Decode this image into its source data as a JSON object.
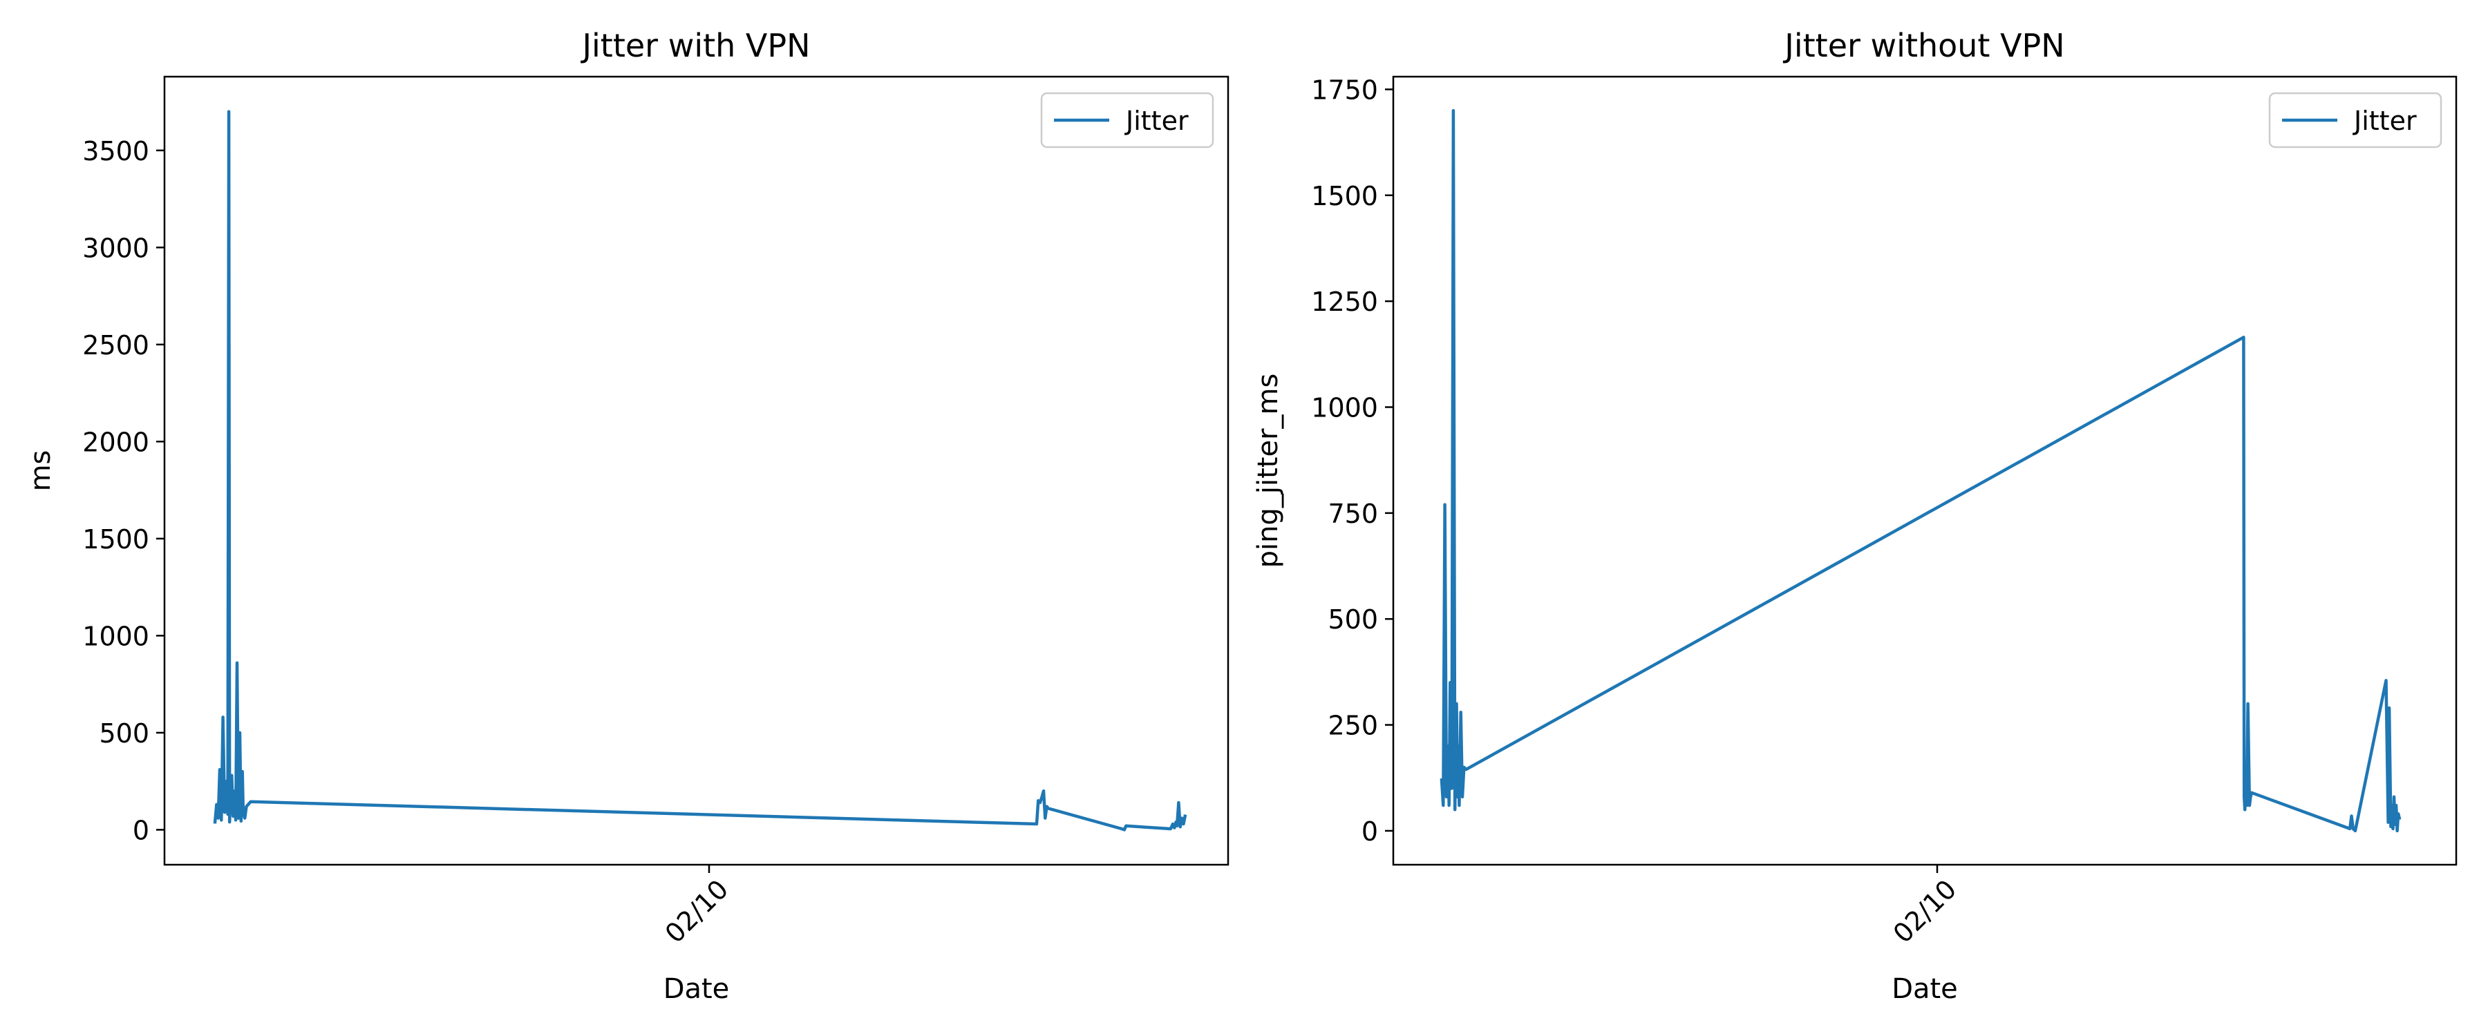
{
  "colors": {
    "series": "#1f77b4",
    "axes": "#000000",
    "background": "#ffffff"
  },
  "chart_data": [
    {
      "type": "line",
      "title": "Jitter with VPN",
      "xlabel": "Date",
      "ylabel": "ms",
      "x_tick_labels": [
        "02/10"
      ],
      "y_ticks": [
        0,
        500,
        1000,
        1500,
        2000,
        2500,
        3000,
        3500
      ],
      "ylim": [
        -180,
        3880
      ],
      "grid": false,
      "legend": {
        "placement": "top-right",
        "entries": [
          "Jitter"
        ]
      },
      "series": [
        {
          "name": "Jitter",
          "x_frac": [
            0.0475,
            0.049,
            0.0505,
            0.052,
            0.0535,
            0.055,
            0.0565,
            0.058,
            0.0595,
            0.0605,
            0.0612,
            0.062,
            0.0632,
            0.0645,
            0.0658,
            0.067,
            0.0682,
            0.0695,
            0.0708,
            0.072,
            0.0732,
            0.074,
            0.0755,
            0.077,
            0.081,
            0.82,
            0.8215,
            0.8232,
            0.825,
            0.8265,
            0.828,
            0.8295,
            0.831,
            0.9,
            0.9025,
            0.904,
            0.946,
            0.948,
            0.9495,
            0.951,
            0.952,
            0.9535,
            0.955,
            0.9565,
            0.958,
            0.9595
          ],
          "values": [
            40,
            130,
            60,
            310,
            50,
            580,
            90,
            250,
            80,
            3700,
            40,
            150,
            280,
            70,
            200,
            50,
            860,
            60,
            500,
            45,
            300,
            90,
            60,
            120,
            145,
            30,
            150,
            140,
            170,
            200,
            60,
            120,
            110,
            5,
            0,
            20,
            5,
            30,
            10,
            40,
            20,
            140,
            15,
            60,
            30,
            70
          ]
        }
      ]
    },
    {
      "type": "line",
      "title": "Jitter without VPN",
      "xlabel": "Date",
      "ylabel": "ping_jitter_ms",
      "x_tick_labels": [
        "02/10"
      ],
      "y_ticks": [
        0,
        250,
        500,
        750,
        1000,
        1250,
        1500,
        1750
      ],
      "ylim": [
        -80,
        1780
      ],
      "grid": false,
      "legend": {
        "placement": "top-right",
        "entries": [
          "Jitter"
        ]
      },
      "series": [
        {
          "name": "Jitter",
          "x_frac": [
            0.0455,
            0.047,
            0.0485,
            0.05,
            0.0515,
            0.0525,
            0.0535,
            0.055,
            0.0565,
            0.058,
            0.0595,
            0.0605,
            0.0612,
            0.062,
            0.0635,
            0.065,
            0.0665,
            0.0685,
            0.8,
            0.8005,
            0.8012,
            0.802,
            0.803,
            0.804,
            0.8055,
            0.8065,
            0.8075,
            0.9,
            0.9015,
            0.903,
            0.905,
            0.934,
            0.936,
            0.937,
            0.9385,
            0.9395,
            0.9405,
            0.9415,
            0.9425,
            0.9435,
            0.9445,
            0.9455,
            0.9465
          ],
          "values": [
            120,
            60,
            770,
            80,
            200,
            60,
            350,
            100,
            1700,
            50,
            300,
            80,
            200,
            60,
            280,
            80,
            150,
            145,
            1165,
            80,
            50,
            120,
            60,
            300,
            60,
            80,
            90,
            5,
            35,
            5,
            0,
            355,
            20,
            290,
            10,
            60,
            5,
            80,
            15,
            60,
            0,
            40,
            30
          ]
        }
      ]
    }
  ]
}
